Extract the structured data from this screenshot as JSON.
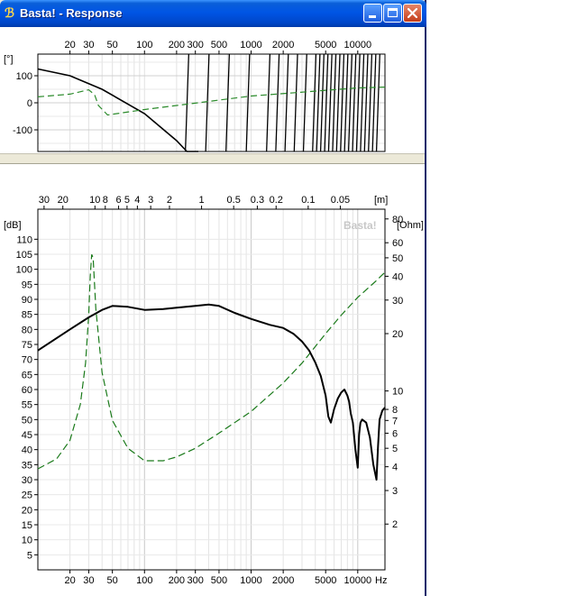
{
  "window": {
    "title": "Basta! - Response",
    "icon": "basta-logo-icon",
    "controls": [
      "minimize-icon",
      "maximize-icon",
      "close-icon"
    ]
  },
  "colors": {
    "spl_curve": "#000000",
    "impedance_curve": "#1a7a1a",
    "phase_curve": "#000000",
    "group_phase_curve": "#2a8a2a",
    "title_bar": "#0055e5",
    "watermark": "#c8c8c8"
  },
  "chart_data": [
    {
      "type": "line",
      "name_key": "phase-chart",
      "xscale": "log",
      "xlim": [
        10,
        18000
      ],
      "ylim": [
        -180,
        180
      ],
      "ylabel": "[°]",
      "x_ticks": [
        20,
        30,
        50,
        100,
        200,
        300,
        500,
        1000,
        2000,
        5000,
        10000
      ],
      "x_tick_labels": [
        "20",
        "30",
        "50",
        "100",
        "200",
        "300",
        "500",
        "1000",
        "2000",
        "5000",
        "10000"
      ],
      "y_ticks": [
        100,
        0,
        -100
      ],
      "y_tick_labels": [
        "100",
        "0",
        "-100"
      ],
      "grid": true,
      "series": [
        {
          "kind": "phase",
          "x": [
            10,
            20,
            40,
            100,
            200,
            250,
            320
          ],
          "y": [
            125,
            100,
            50,
            -40,
            -140,
            -180,
            -180
          ]
        },
        {
          "kind": "group",
          "x": [
            10,
            20,
            30,
            34,
            37,
            45,
            100,
            1000,
            10000,
            18000
          ],
          "y": [
            22,
            32,
            48,
            30,
            -10,
            -45,
            -25,
            25,
            55,
            58
          ]
        }
      ]
    },
    {
      "type": "line",
      "name_key": "response-chart",
      "xscale": "log",
      "xlim": [
        10,
        18000
      ],
      "ylim": [
        0,
        120
      ],
      "ylabel": "[dB]",
      "y2label": "[Ohm]",
      "y2scale": "log",
      "y2lim": [
        1.15,
        90
      ],
      "xunit": "Hz",
      "top_unit": "[m]",
      "watermark": "Basta!",
      "x_ticks": [
        20,
        30,
        50,
        100,
        200,
        300,
        500,
        1000,
        2000,
        5000,
        10000
      ],
      "x_tick_labels": [
        "20",
        "30",
        "50",
        "100",
        "200",
        "300",
        "500",
        "1000",
        "2000",
        "5000",
        "10000"
      ],
      "y_ticks": [
        5,
        10,
        15,
        20,
        25,
        30,
        35,
        40,
        45,
        50,
        55,
        60,
        65,
        70,
        75,
        80,
        85,
        90,
        95,
        100,
        105,
        110
      ],
      "y_tick_labels": [
        "5",
        "10",
        "15",
        "20",
        "25",
        "30",
        "35",
        "40",
        "45",
        "50",
        "55",
        "60",
        "65",
        "70",
        "75",
        "80",
        "85",
        "90",
        "95",
        "100",
        "105",
        "110"
      ],
      "y2_ticks": [
        2,
        3,
        4,
        5,
        6,
        7,
        8,
        10,
        20,
        30,
        40,
        50,
        60,
        80
      ],
      "y2_tick_labels": [
        "2",
        "3",
        "4",
        "5",
        "6",
        "7",
        "8",
        "10",
        "20",
        "30",
        "40",
        "50",
        "60",
        "80"
      ],
      "wavelength_ticks": [
        30,
        20,
        10,
        8,
        6,
        5,
        4,
        3,
        2,
        1,
        0.5,
        0.3,
        0.2,
        0.1,
        0.05
      ],
      "wavelength_tick_labels": [
        "30",
        "20",
        "10",
        "8",
        "6",
        "5",
        "4",
        "3",
        "2",
        "1",
        "0.5",
        "0.3",
        "0.2",
        "0.1",
        "0.05"
      ],
      "grid": true,
      "series": [
        {
          "kind": "spl",
          "x": [
            10,
            20,
            30,
            40,
            50,
            70,
            100,
            150,
            200,
            300,
            400,
            500,
            700,
            1000,
            1500,
            2000,
            2500,
            3000,
            3500,
            4000,
            4500,
            5000,
            5300,
            5600,
            6000,
            6500,
            7000,
            7500,
            8000,
            8300,
            8600,
            9000,
            9500,
            10000,
            10300,
            10600,
            11000,
            12000,
            13000,
            14000,
            15000,
            15500,
            16000,
            17000,
            18000
          ],
          "y": [
            73,
            80,
            84,
            86.5,
            87.8,
            87.5,
            86.5,
            86.8,
            87.2,
            87.8,
            88.3,
            87.8,
            85.5,
            83.5,
            81.5,
            80.5,
            78.5,
            76,
            73,
            69,
            64.5,
            58,
            51,
            49,
            53.5,
            57,
            59,
            60,
            58,
            56,
            52,
            49,
            40,
            34,
            45,
            49,
            50,
            49,
            44,
            35,
            30,
            41,
            50,
            53,
            54
          ]
        },
        {
          "kind": "impedance",
          "x": [
            10,
            15,
            20,
            25,
            28,
            30,
            31,
            32,
            33,
            35,
            40,
            50,
            70,
            100,
            150,
            200,
            300,
            500,
            1000,
            2000,
            3000,
            5000,
            7000,
            10000,
            15000,
            18000
          ],
          "y": [
            3.9,
            4.4,
            5.5,
            8.5,
            14,
            25,
            40,
            52,
            50,
            27,
            12.5,
            7,
            5,
            4.3,
            4.3,
            4.5,
            5.0,
            6.0,
            7.8,
            11,
            14,
            20,
            25,
            31,
            38,
            42
          ]
        }
      ]
    }
  ]
}
